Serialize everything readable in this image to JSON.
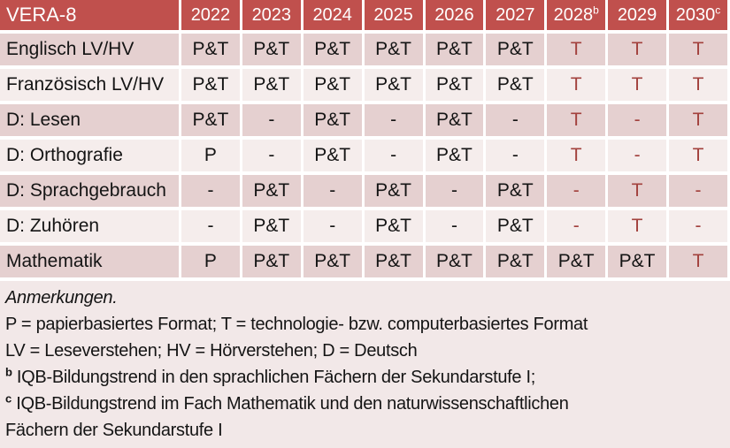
{
  "table": {
    "header": {
      "label": "VERA-8",
      "years": [
        {
          "label": "2022",
          "sup": ""
        },
        {
          "label": "2023",
          "sup": ""
        },
        {
          "label": "2024",
          "sup": ""
        },
        {
          "label": "2025",
          "sup": ""
        },
        {
          "label": "2026",
          "sup": ""
        },
        {
          "label": "2027",
          "sup": ""
        },
        {
          "label": "2028",
          "sup": "b"
        },
        {
          "label": "2029",
          "sup": ""
        },
        {
          "label": "2030",
          "sup": "c"
        }
      ]
    },
    "rows": [
      {
        "label": "Englisch LV/HV",
        "values": [
          "P&T",
          "P&T",
          "P&T",
          "P&T",
          "P&T",
          "P&T",
          "T",
          "T",
          "T"
        ]
      },
      {
        "label": "Französisch LV/HV",
        "values": [
          "P&T",
          "P&T",
          "P&T",
          "P&T",
          "P&T",
          "P&T",
          "T",
          "T",
          "T"
        ]
      },
      {
        "label": "D: Lesen",
        "values": [
          "P&T",
          "-",
          "P&T",
          "-",
          "P&T",
          "-",
          "T",
          "-",
          "T"
        ]
      },
      {
        "label": "D: Orthografie",
        "values": [
          "P",
          "-",
          "P&T",
          "-",
          "P&T",
          "-",
          "T",
          "-",
          "T"
        ]
      },
      {
        "label": "D: Sprachgebrauch",
        "values": [
          "-",
          "P&T",
          "-",
          "P&T",
          "-",
          "P&T",
          "-",
          "T",
          "-"
        ]
      },
      {
        "label": "D: Zuhören",
        "values": [
          "-",
          "P&T",
          "-",
          "P&T",
          "-",
          "P&T",
          "-",
          "T",
          "-"
        ]
      },
      {
        "label": "Mathematik",
        "values": [
          "P",
          "P&T",
          "P&T",
          "P&T",
          "P&T",
          "P&T",
          "P&T",
          "P&T",
          "T"
        ]
      }
    ]
  },
  "notes": {
    "title": "Anmerkungen.",
    "formats_line": "P = papierbasiertes Format; T = technologie- bzw. computerbasiertes Format",
    "abbreviations_line": "LV = Leseverstehen; HV = Hörverstehen; D = Deutsch",
    "note_b": {
      "sup": "b",
      "text": "IQB-Bildungstrend in den sprachlichen Fächern der Sekundarstufe I;"
    },
    "note_c": {
      "sup": "c",
      "text_line1": "IQB-Bildungstrend im Fach Mathematik und den naturwissenschaftlichen",
      "text_line2": "Fächern der Sekundarstufe I"
    }
  },
  "colors": {
    "header_bg": "#C0504D",
    "band_dark": "#E5D0D0",
    "band_light": "#F5EDEC",
    "notes_bg": "#F2E8E8",
    "accent_text": "#A2413D",
    "header_text": "#FFFFFF",
    "body_text": "#141414"
  }
}
